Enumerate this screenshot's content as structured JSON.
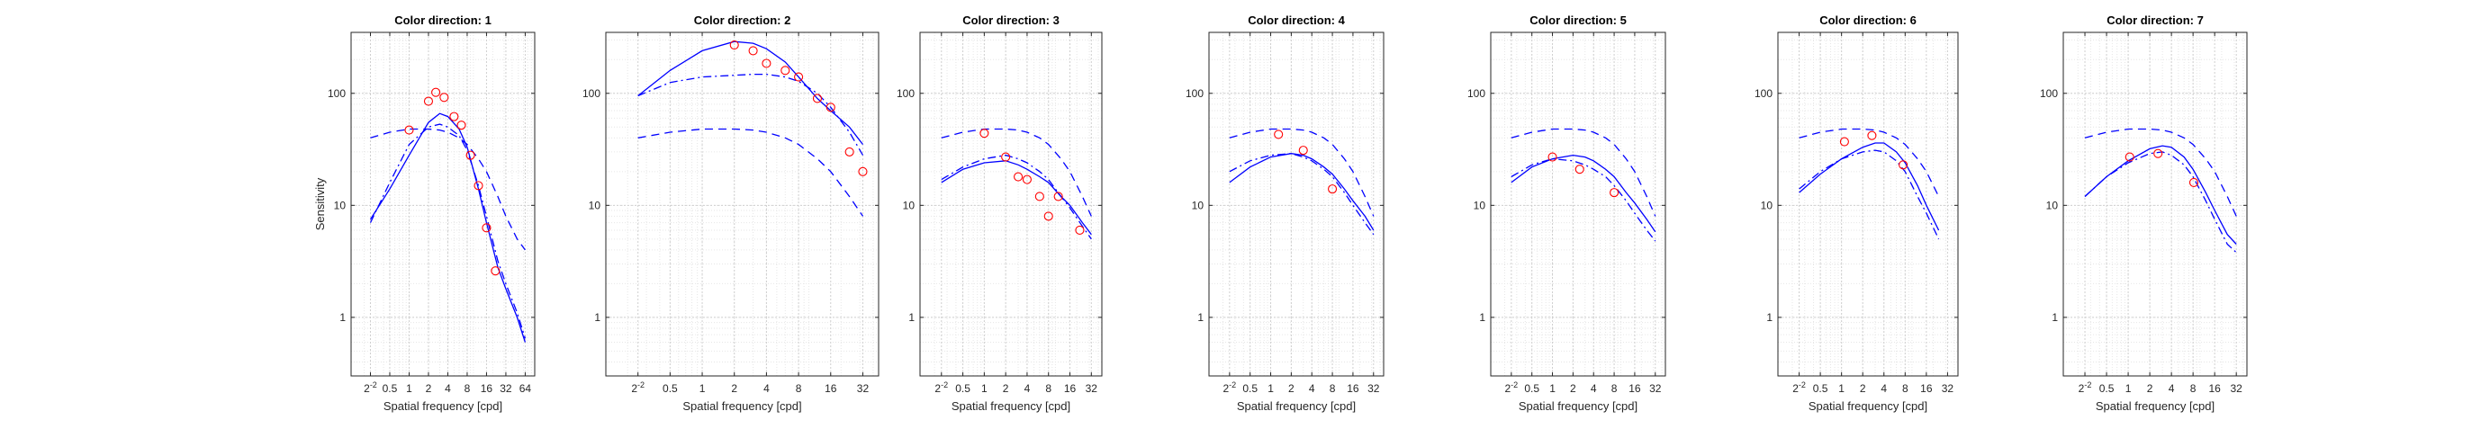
{
  "common": {
    "ylabel": "Sensitivity",
    "xlabel": "Spatial frequency [cpd]",
    "yticks": [
      1,
      10,
      100
    ],
    "ylim": [
      0.3,
      350
    ],
    "scale": "log-log",
    "grid": true,
    "line_color": "#0000ff",
    "marker_color": "#ff0000"
  },
  "chart_data": [
    {
      "type": "line",
      "title": "Color direction: 1",
      "xticks": [
        0.25,
        0.5,
        1,
        2,
        4,
        8,
        16,
        32,
        64
      ],
      "xticklabels": [
        "2^-2",
        "0.5",
        "1",
        "2",
        "4",
        "8",
        "16",
        "32",
        "64"
      ],
      "xlim": [
        0.125,
        90
      ],
      "series": [
        {
          "style": "solid",
          "x": [
            0.25,
            0.5,
            1,
            2,
            3,
            4,
            6,
            8,
            12,
            16,
            24,
            32,
            48,
            64
          ],
          "y": [
            7.5,
            14,
            28,
            55,
            66,
            62,
            48,
            33,
            14,
            7,
            2.8,
            1.8,
            1.0,
            0.6
          ]
        },
        {
          "style": "dashdot",
          "x": [
            0.25,
            0.5,
            1,
            2,
            3,
            4,
            6,
            8,
            12,
            16,
            24,
            32,
            48,
            64
          ],
          "y": [
            7,
            16,
            35,
            50,
            53,
            50,
            42,
            31,
            15,
            8,
            3.2,
            2.0,
            1.1,
            0.65
          ]
        },
        {
          "style": "dashed",
          "x": [
            0.25,
            0.5,
            1,
            2,
            3,
            4,
            6,
            8,
            12,
            16,
            24,
            32,
            48,
            64
          ],
          "y": [
            40,
            45,
            48,
            48,
            47,
            45,
            40,
            35,
            26,
            20,
            12,
            8,
            5,
            4
          ]
        },
        {
          "style": "markers",
          "x": [
            1,
            2,
            2.6,
            3.5,
            5,
            6.5,
            9,
            12,
            16,
            22
          ],
          "y": [
            47,
            85,
            102,
            92,
            62,
            52,
            28,
            15,
            6.3,
            2.6
          ]
        }
      ]
    },
    {
      "type": "line",
      "title": "Color direction: 2",
      "xticks": [
        0.25,
        0.5,
        1,
        2,
        4,
        8,
        16,
        32
      ],
      "xticklabels": [
        "2^-2",
        "0.5",
        "1",
        "2",
        "4",
        "8",
        "16",
        "32"
      ],
      "xlim": [
        0.125,
        45
      ],
      "series": [
        {
          "style": "solid",
          "x": [
            0.25,
            0.5,
            1,
            2,
            3,
            4,
            6,
            8,
            12,
            16,
            24,
            32
          ],
          "y": [
            95,
            160,
            240,
            290,
            280,
            250,
            190,
            140,
            90,
            70,
            50,
            35
          ]
        },
        {
          "style": "dashdot",
          "x": [
            0.25,
            0.5,
            1,
            2,
            3,
            4,
            6,
            8,
            12,
            16,
            24,
            32
          ],
          "y": [
            95,
            125,
            140,
            145,
            148,
            148,
            140,
            128,
            100,
            75,
            45,
            28
          ]
        },
        {
          "style": "dashed",
          "x": [
            0.25,
            0.5,
            1,
            2,
            3,
            4,
            6,
            8,
            12,
            16,
            24,
            32
          ],
          "y": [
            40,
            45,
            48,
            48,
            47,
            45,
            40,
            35,
            26,
            20,
            12,
            8
          ]
        },
        {
          "style": "markers",
          "x": [
            2,
            3,
            4,
            6,
            8,
            12,
            16,
            24,
            32
          ],
          "y": [
            270,
            240,
            185,
            160,
            140,
            90,
            75,
            30,
            20
          ]
        }
      ]
    },
    {
      "type": "line",
      "title": "Color direction: 3",
      "xticks": [
        0.25,
        0.5,
        1,
        2,
        4,
        8,
        16,
        32
      ],
      "xticklabels": [
        "2^-2",
        "0.5",
        "1",
        "2",
        "4",
        "8",
        "16",
        "32"
      ],
      "xlim": [
        0.125,
        45
      ],
      "series": [
        {
          "style": "solid",
          "x": [
            0.25,
            0.5,
            1,
            2,
            3,
            4,
            6,
            8,
            12,
            16,
            24,
            32
          ],
          "y": [
            16,
            21,
            24,
            25,
            23,
            21,
            18,
            16,
            12,
            10,
            7,
            5.5
          ]
        },
        {
          "style": "dashdot",
          "x": [
            0.25,
            0.5,
            1,
            2,
            3,
            4,
            6,
            8,
            12,
            16,
            24,
            32
          ],
          "y": [
            17,
            22,
            26,
            28,
            26,
            24,
            20,
            17,
            12,
            9.5,
            6.5,
            5
          ]
        },
        {
          "style": "dashed",
          "x": [
            0.25,
            0.5,
            1,
            2,
            3,
            4,
            6,
            8,
            12,
            16,
            24,
            32
          ],
          "y": [
            40,
            45,
            48,
            48,
            47,
            45,
            40,
            35,
            26,
            20,
            12,
            8
          ]
        },
        {
          "style": "markers",
          "x": [
            1,
            2,
            3,
            4,
            6,
            8,
            11,
            22
          ],
          "y": [
            44,
            27,
            18,
            17,
            12,
            8,
            12,
            6
          ]
        }
      ]
    },
    {
      "type": "line",
      "title": "Color direction: 4",
      "xticks": [
        0.25,
        0.5,
        1,
        2,
        4,
        8,
        16,
        32
      ],
      "xticklabels": [
        "2^-2",
        "0.5",
        "1",
        "2",
        "4",
        "8",
        "16",
        "32"
      ],
      "xlim": [
        0.125,
        45
      ],
      "series": [
        {
          "style": "solid",
          "x": [
            0.25,
            0.5,
            1,
            2,
            3,
            4,
            6,
            8,
            12,
            16,
            24,
            32
          ],
          "y": [
            16,
            22,
            27,
            29,
            28,
            26,
            22,
            19,
            14,
            11,
            8,
            6
          ]
        },
        {
          "style": "dashdot",
          "x": [
            0.25,
            0.5,
            1,
            2,
            3,
            4,
            6,
            8,
            12,
            16,
            24,
            32
          ],
          "y": [
            20,
            25,
            28,
            29,
            27,
            25,
            21,
            18,
            13,
            10,
            7,
            5.5
          ]
        },
        {
          "style": "dashed",
          "x": [
            0.25,
            0.5,
            1,
            2,
            3,
            4,
            6,
            8,
            12,
            16,
            24,
            32
          ],
          "y": [
            40,
            45,
            48,
            48,
            47,
            45,
            40,
            35,
            26,
            20,
            12,
            8
          ]
        },
        {
          "style": "markers",
          "x": [
            1.3,
            3,
            8
          ],
          "y": [
            43,
            31,
            14
          ]
        }
      ]
    },
    {
      "type": "line",
      "title": "Color direction: 5",
      "xticks": [
        0.25,
        0.5,
        1,
        2,
        4,
        8,
        16,
        32
      ],
      "xticklabels": [
        "2^-2",
        "0.5",
        "1",
        "2",
        "4",
        "8",
        "16",
        "32"
      ],
      "xlim": [
        0.125,
        45
      ],
      "series": [
        {
          "style": "solid",
          "x": [
            0.25,
            0.5,
            1,
            2,
            3,
            4,
            6,
            8,
            12,
            16,
            24,
            32
          ],
          "y": [
            16,
            22,
            26,
            28,
            27,
            25,
            21,
            18,
            13,
            10.5,
            7.5,
            5.8
          ]
        },
        {
          "style": "dashdot",
          "x": [
            0.25,
            0.5,
            1,
            2,
            3,
            4,
            6,
            8,
            12,
            16,
            24,
            32
          ],
          "y": [
            18,
            23,
            26,
            25,
            23,
            21,
            18,
            15,
            11,
            8.5,
            6,
            4.8
          ]
        },
        {
          "style": "dashed",
          "x": [
            0.25,
            0.5,
            1,
            2,
            3,
            4,
            6,
            8,
            12,
            16,
            24,
            32
          ],
          "y": [
            40,
            45,
            48,
            48,
            47,
            45,
            40,
            35,
            26,
            20,
            12,
            8
          ]
        },
        {
          "style": "markers",
          "x": [
            1,
            2.5,
            8
          ],
          "y": [
            27,
            21,
            13
          ]
        }
      ]
    },
    {
      "type": "line",
      "title": "Color direction: 6",
      "xticks": [
        0.25,
        0.5,
        1,
        2,
        4,
        8,
        16,
        32
      ],
      "xticklabels": [
        "2^-2",
        "0.5",
        "1",
        "2",
        "4",
        "8",
        "16",
        "32"
      ],
      "xlim": [
        0.125,
        45
      ],
      "series": [
        {
          "style": "solid",
          "x": [
            0.25,
            0.5,
            1,
            2,
            3,
            4,
            6,
            8,
            12,
            16,
            24
          ],
          "y": [
            13,
            19,
            26,
            33,
            36,
            36,
            30,
            24,
            15,
            10,
            6
          ]
        },
        {
          "style": "dashdot",
          "x": [
            0.25,
            0.5,
            1,
            2,
            3,
            4,
            6,
            8,
            12,
            16,
            24
          ],
          "y": [
            14,
            20,
            26,
            30,
            31,
            30,
            25,
            20,
            12,
            8.5,
            5
          ]
        },
        {
          "style": "dashed",
          "x": [
            0.25,
            0.5,
            1,
            2,
            3,
            4,
            6,
            8,
            12,
            16,
            24
          ],
          "y": [
            40,
            45,
            48,
            48,
            47,
            45,
            40,
            35,
            26,
            20,
            12
          ]
        },
        {
          "style": "markers",
          "x": [
            1.1,
            2.7,
            7.5
          ],
          "y": [
            37,
            42,
            23
          ]
        }
      ]
    },
    {
      "type": "line",
      "title": "Color direction: 7",
      "xticks": [
        0.25,
        0.5,
        1,
        2,
        4,
        8,
        16,
        32
      ],
      "xticklabels": [
        "2^-2",
        "0.5",
        "1",
        "2",
        "4",
        "8",
        "16",
        "32"
      ],
      "xlim": [
        0.125,
        45
      ],
      "series": [
        {
          "style": "solid",
          "x": [
            0.25,
            0.5,
            1,
            2,
            3,
            4,
            6,
            8,
            12,
            16,
            24,
            32
          ],
          "y": [
            12,
            18,
            25,
            32,
            34,
            33,
            27,
            21,
            13,
            9,
            5.5,
            4.5
          ]
        },
        {
          "style": "dashdot",
          "x": [
            0.25,
            0.5,
            1,
            2,
            3,
            4,
            6,
            8,
            12,
            16,
            24,
            32
          ],
          "y": [
            12,
            18,
            24,
            29,
            30,
            28,
            23,
            18,
            11,
            7.5,
            4.5,
            3.8
          ]
        },
        {
          "style": "dashed",
          "x": [
            0.25,
            0.5,
            1,
            2,
            3,
            4,
            6,
            8,
            12,
            16,
            24,
            32
          ],
          "y": [
            40,
            45,
            48,
            48,
            47,
            45,
            40,
            35,
            26,
            20,
            12,
            8
          ]
        },
        {
          "style": "markers",
          "x": [
            1.05,
            2.6,
            8.2
          ],
          "y": [
            27,
            29,
            16
          ]
        }
      ]
    }
  ]
}
